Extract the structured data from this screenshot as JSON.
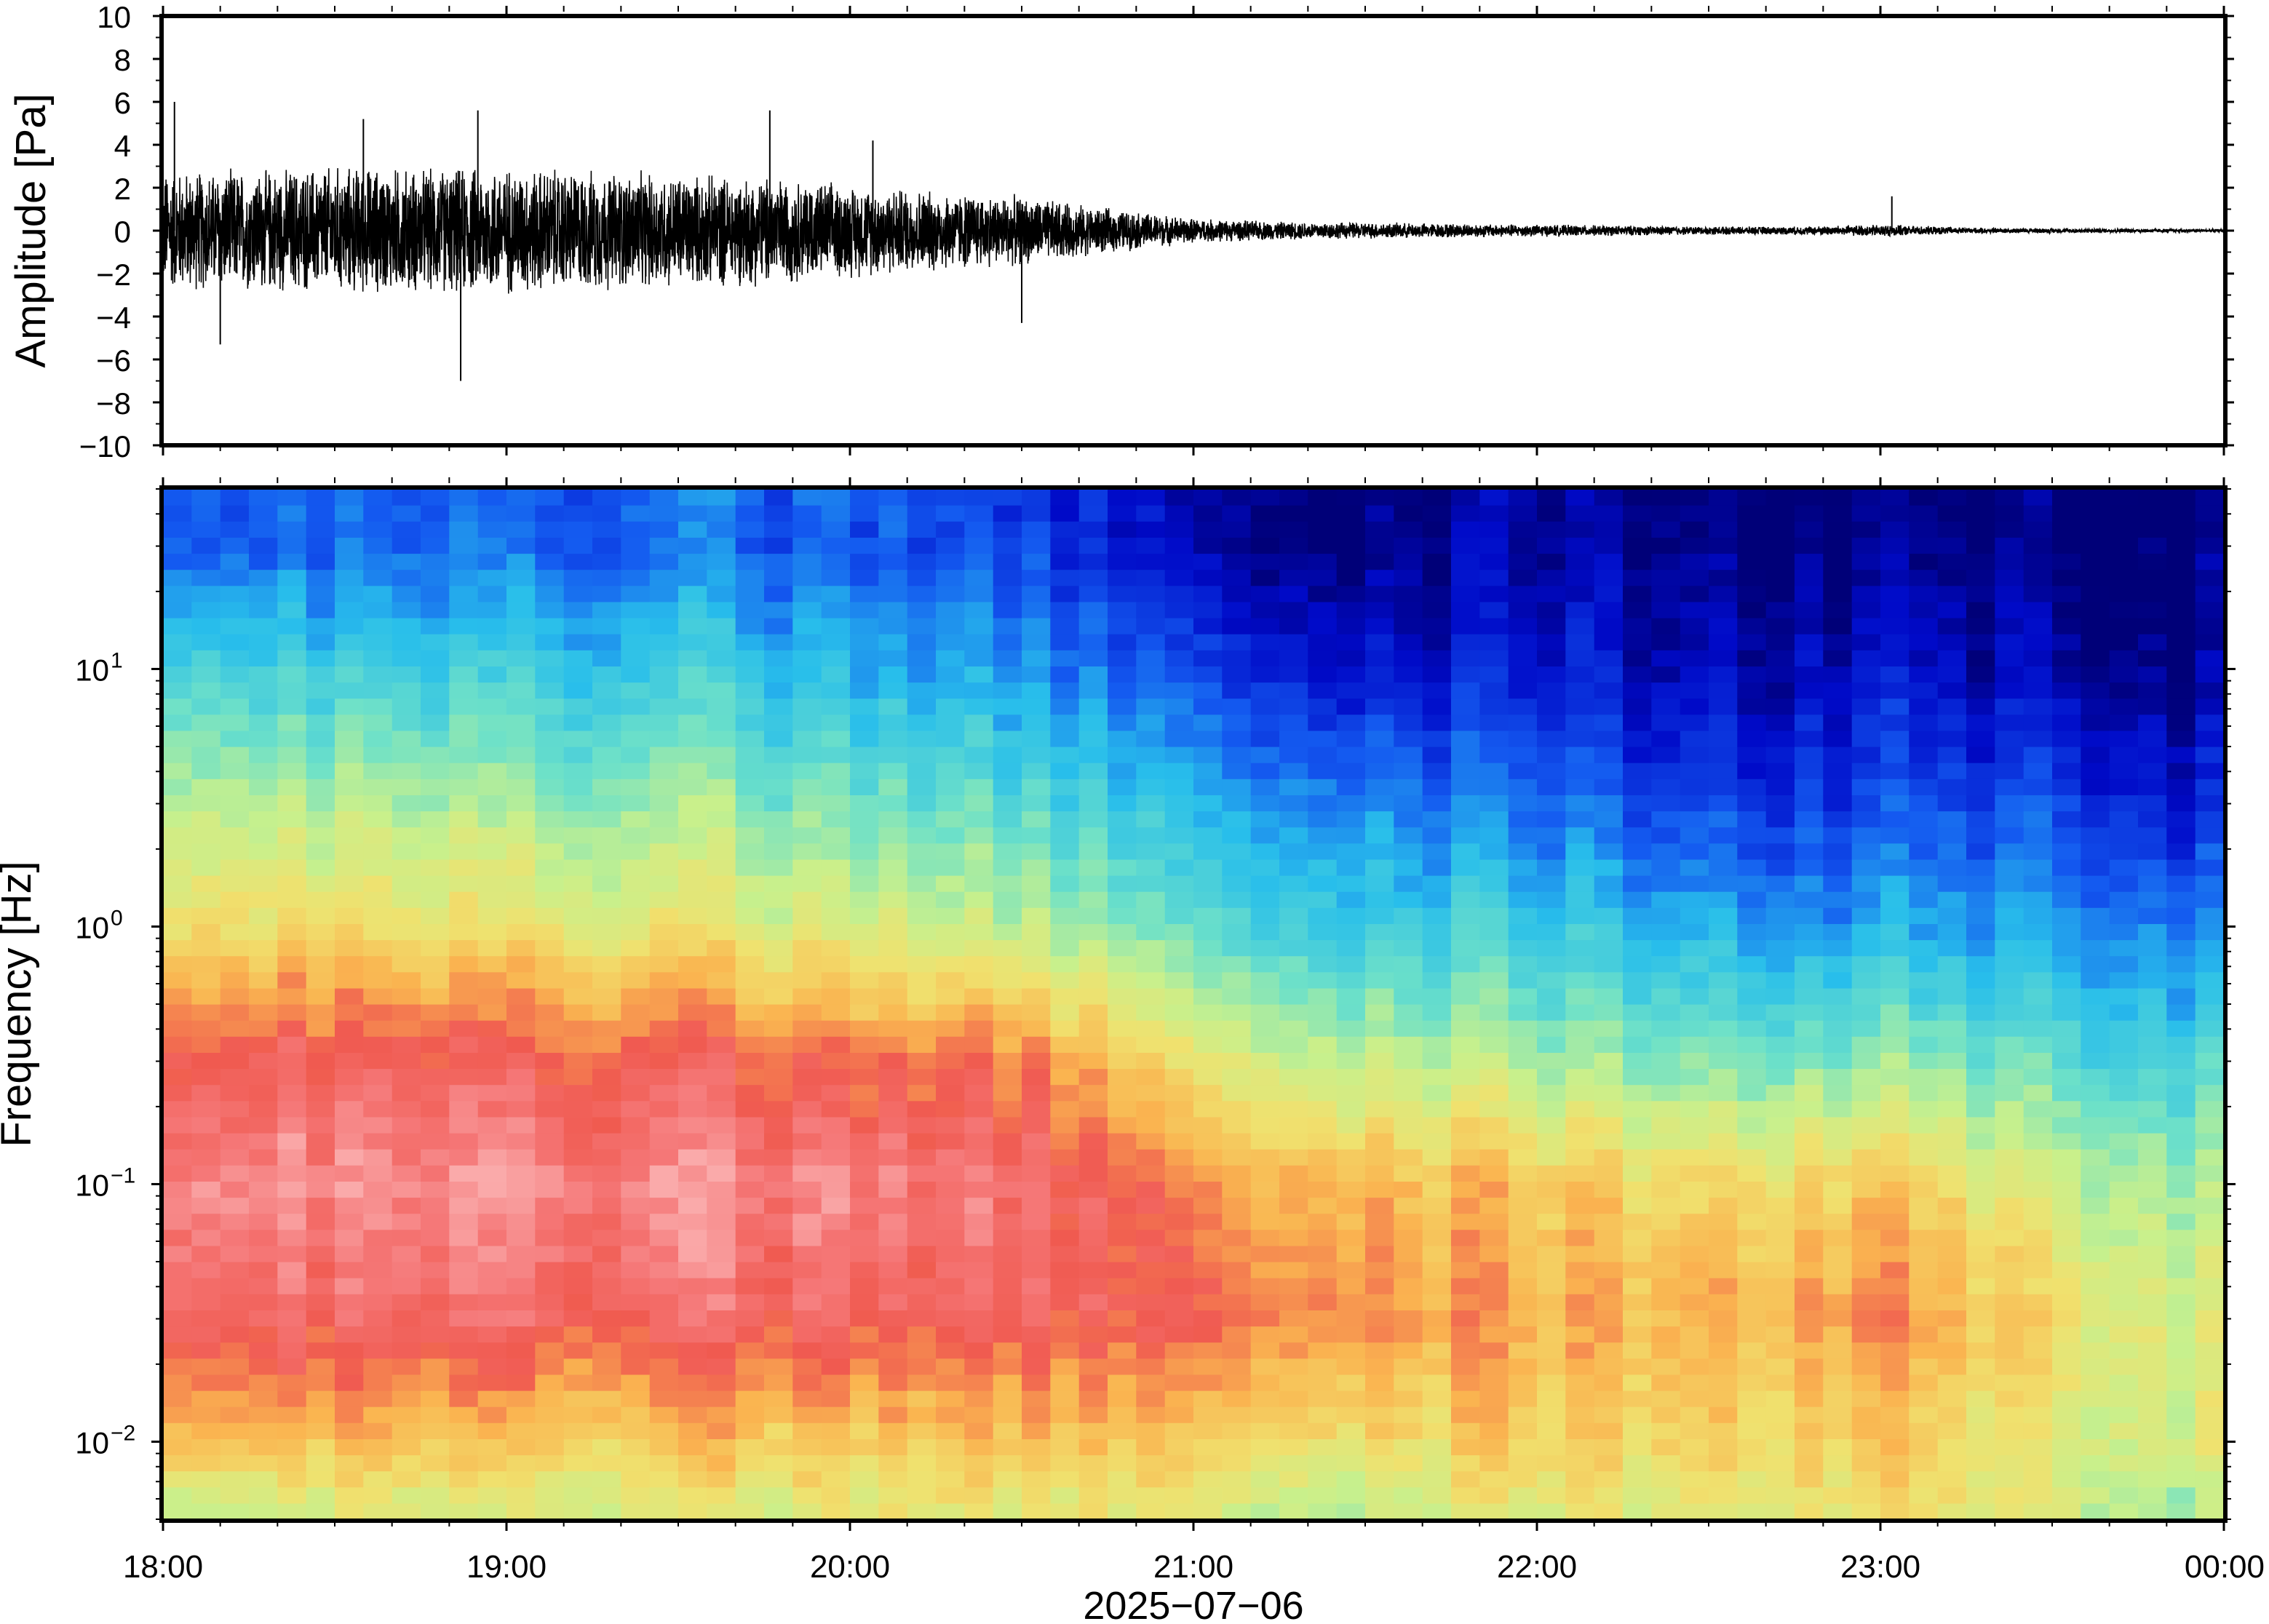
{
  "chart_data": [
    {
      "type": "line",
      "title": "",
      "xlabel": "",
      "ylabel": "Amplitude [Pa]",
      "ylim": [
        -10,
        10
      ],
      "yticks": [
        -10,
        -8,
        -6,
        -4,
        -2,
        0,
        2,
        4,
        6,
        8,
        10
      ],
      "ytick_labels": [
        "−10",
        "−8",
        "−6",
        "−4",
        "−2",
        "0",
        "2",
        "4",
        "6",
        "8",
        "10"
      ],
      "x_range": [
        "18:00",
        "00:00"
      ],
      "envelope": {
        "time_hours": [
          18.0,
          18.25,
          18.5,
          18.75,
          19.0,
          19.25,
          19.5,
          19.75,
          20.0,
          20.25,
          20.5,
          20.75,
          21.0,
          21.25,
          21.5,
          21.75,
          22.0,
          22.25,
          22.5,
          22.75,
          23.0,
          23.25,
          23.5,
          23.75,
          24.0
        ],
        "max_abs_amplitude": [
          3.0,
          3.0,
          3.2,
          3.1,
          3.2,
          3.0,
          2.8,
          2.7,
          2.3,
          2.0,
          1.7,
          1.1,
          0.6,
          0.45,
          0.4,
          0.35,
          0.3,
          0.25,
          0.2,
          0.2,
          0.3,
          0.15,
          0.12,
          0.1,
          0.08
        ]
      },
      "spikes": [
        {
          "time": "18:02",
          "amplitude": 6.0
        },
        {
          "time": "18:52",
          "amplitude": -7.0
        },
        {
          "time": "18:55",
          "amplitude": 5.6
        },
        {
          "time": "18:35",
          "amplitude": 5.2
        },
        {
          "time": "19:46",
          "amplitude": 5.6
        },
        {
          "time": "20:04",
          "amplitude": 4.2
        },
        {
          "time": "18:10",
          "amplitude": -5.3
        },
        {
          "time": "20:30",
          "amplitude": -4.3
        },
        {
          "time": "23:02",
          "amplitude": 1.6
        }
      ]
    },
    {
      "type": "heatmap",
      "title": "",
      "xlabel": "2025−07−06",
      "ylabel": "Frequency [Hz]",
      "yscale": "log",
      "ylim": [
        0.005,
        50
      ],
      "yticks": [
        0.01,
        0.1,
        1,
        10
      ],
      "ytick_labels": [
        {
          "base": "10",
          "exp": "−2"
        },
        {
          "base": "10",
          "exp": "−1"
        },
        {
          "base": "10",
          "exp": "0"
        },
        {
          "base": "10",
          "exp": "1"
        }
      ],
      "xticks": [
        "18:00",
        "19:00",
        "20:00",
        "21:00",
        "22:00",
        "23:00",
        "00:00"
      ],
      "colormap": "jet",
      "time_hours": [
        18.0,
        18.5,
        19.0,
        19.5,
        20.0,
        20.5,
        21.0,
        21.5,
        22.0,
        22.5,
        23.0,
        23.5,
        24.0
      ],
      "log10_frequency": [
        -2.3,
        -2.0,
        -1.5,
        -1.0,
        -0.5,
        0.0,
        0.5,
        1.0,
        1.5
      ],
      "relative_power": [
        [
          0.55,
          0.6,
          0.6,
          0.6,
          0.62,
          0.62,
          0.6,
          0.55,
          0.62,
          0.6,
          0.68,
          0.6,
          0.5
        ],
        [
          0.75,
          0.75,
          0.72,
          0.72,
          0.72,
          0.72,
          0.7,
          0.68,
          0.7,
          0.68,
          0.72,
          0.62,
          0.6
        ],
        [
          0.92,
          0.92,
          0.92,
          0.9,
          0.9,
          0.88,
          0.85,
          0.82,
          0.76,
          0.74,
          0.82,
          0.66,
          0.6
        ],
        [
          0.97,
          0.98,
          0.98,
          0.97,
          0.96,
          0.92,
          0.8,
          0.76,
          0.72,
          0.66,
          0.74,
          0.58,
          0.52
        ],
        [
          0.88,
          0.9,
          0.88,
          0.86,
          0.84,
          0.8,
          0.62,
          0.56,
          0.52,
          0.45,
          0.5,
          0.42,
          0.38
        ],
        [
          0.68,
          0.68,
          0.66,
          0.64,
          0.6,
          0.55,
          0.42,
          0.38,
          0.35,
          0.28,
          0.3,
          0.28,
          0.24
        ],
        [
          0.55,
          0.55,
          0.52,
          0.5,
          0.46,
          0.4,
          0.3,
          0.26,
          0.22,
          0.14,
          0.18,
          0.16,
          0.1
        ],
        [
          0.4,
          0.38,
          0.37,
          0.36,
          0.32,
          0.26,
          0.16,
          0.1,
          0.1,
          0.04,
          0.1,
          0.04,
          0.02
        ],
        [
          0.2,
          0.22,
          0.22,
          0.22,
          0.2,
          0.15,
          0.04,
          0.02,
          0.04,
          0.0,
          0.02,
          0.0,
          0.0
        ]
      ]
    }
  ]
}
